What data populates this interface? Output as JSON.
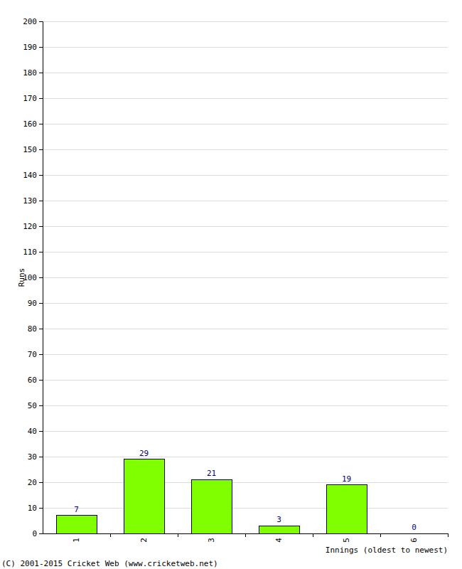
{
  "chart_data": {
    "type": "bar",
    "x_label": "Innings (oldest to newest)",
    "y_label": "Runs",
    "annotations": [
      "(C) 2001-2015 Cricket Web (www.cricketweb.net)"
    ],
    "categories": [
      "1",
      "2",
      "3",
      "4",
      "5",
      "6"
    ],
    "values": [
      7,
      29,
      21,
      3,
      19,
      0
    ],
    "color": "#80ff00",
    "ylim": [
      0,
      200
    ],
    "yticks": [
      0,
      10,
      20,
      30,
      40,
      50,
      60,
      70,
      80,
      90,
      100,
      110,
      120,
      130,
      140,
      150,
      160,
      170,
      180,
      190,
      200
    ],
    "grid": true,
    "data_labels": true
  }
}
